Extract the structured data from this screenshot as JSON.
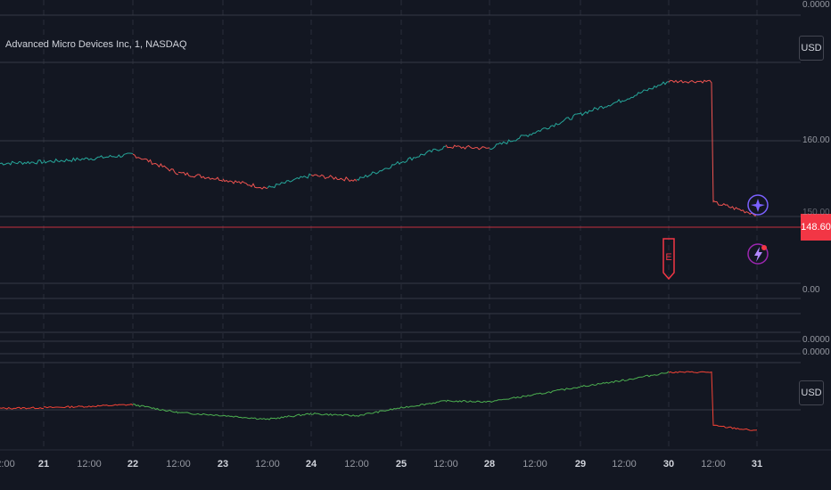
{
  "symbol_title": "Advanced Micro Devices Inc, 1, NASDAQ",
  "currency_button_top": "USD",
  "currency_button_bottom": "USD",
  "current_price": "148.60",
  "y_labels": {
    "top_zero": "0.0000",
    "level_160": "160.00",
    "level_150_partial": "150.00",
    "zero_mid": "0.00",
    "zero_low": "0.0000",
    "zero_bottom_pane": "0.0000"
  },
  "x_labels": [
    "2:00",
    "21",
    "12:00",
    "22",
    "12:00",
    "23",
    "12:00",
    "24",
    "12:00",
    "25",
    "12:00",
    "28",
    "12:00",
    "29",
    "12:00",
    "30",
    "12:00",
    "31"
  ],
  "x_label_major": [
    false,
    true,
    false,
    true,
    false,
    true,
    false,
    true,
    false,
    true,
    false,
    true,
    false,
    true,
    false,
    true,
    false,
    true
  ],
  "markers": {
    "earnings_icon": "E",
    "event_icons": [
      "lightning-icon",
      "plus-icon"
    ]
  },
  "colors": {
    "background": "#131722",
    "up": "#26a69a",
    "down": "#ef5350",
    "price_line": "#f23645",
    "indicator_up": "#4caf50",
    "indicator_down": "#f44336",
    "accent_purple": "#7b61ff"
  },
  "chart_data": [
    {
      "type": "line",
      "title": "Advanced Micro Devices Inc, 1, NASDAQ",
      "xlabel": "",
      "ylabel": "",
      "x": [
        "20 12:00",
        "21 00:00",
        "21 12:00",
        "22 00:00",
        "22 12:00",
        "23 00:00",
        "23 12:00",
        "24 00:00",
        "24 12:00",
        "25 00:00",
        "25 12:00",
        "28 00:00",
        "28 12:00",
        "29 00:00",
        "29 12:00",
        "30 00:00",
        "30 12:00",
        "31 00:00"
      ],
      "series": [
        {
          "values": [
            155.0,
            155.2,
            155.6,
            156.1,
            153.8,
            153.0,
            151.9,
            153.5,
            152.9,
            155.2,
            157.1,
            156.9,
            158.9,
            161.2,
            163.0,
            165.3,
            150.1,
            148.6
          ]
        }
      ],
      "ylim": [
        147,
        166
      ],
      "grid": true,
      "current_value": 148.6
    },
    {
      "type": "line",
      "title": "",
      "xlabel": "",
      "ylabel": "",
      "x": [
        "20 12:00",
        "21 00:00",
        "21 12:00",
        "22 00:00",
        "22 12:00",
        "23 00:00",
        "23 12:00",
        "24 00:00",
        "24 12:00",
        "25 00:00",
        "25 12:00",
        "28 00:00",
        "28 12:00",
        "29 00:00",
        "29 12:00",
        "30 00:00",
        "30 12:00",
        "31 00:00"
      ],
      "series": [
        {
          "values": [
            155.0,
            155.2,
            155.6,
            156.1,
            153.8,
            153.0,
            151.9,
            153.5,
            152.9,
            155.2,
            157.1,
            156.9,
            158.9,
            161.2,
            163.0,
            165.3,
            150.1,
            148.6
          ]
        }
      ],
      "grid": true
    }
  ]
}
